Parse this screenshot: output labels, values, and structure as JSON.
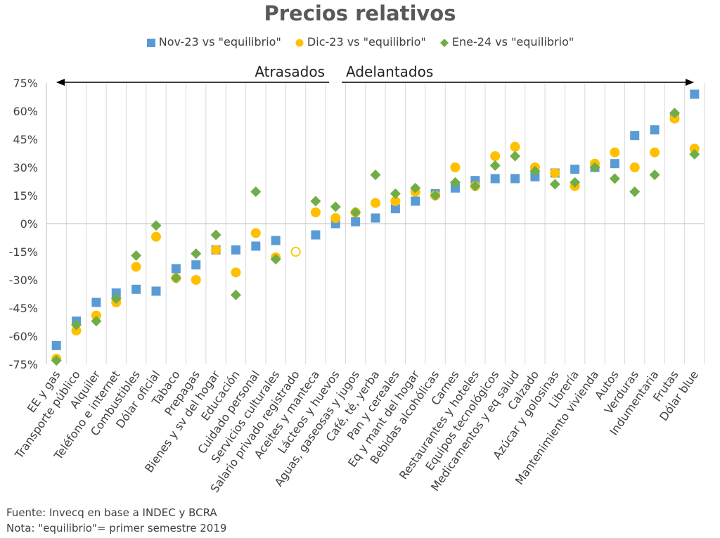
{
  "chart_data": {
    "type": "scatter",
    "title": "Precios relativos",
    "categories": [
      "EE y gas",
      "Transporte público",
      "Alquiler",
      "Teléfono e internet",
      "Combustibles",
      "Dólar oficial",
      "Tabaco",
      "Prepagas",
      "Bienes y sv del hogar",
      "Educación",
      "Cuidado personal",
      "Servicios culturales",
      "Salario privado registrado",
      "Aceites y manteca",
      "Lácteos y huevos",
      "Aguas, gaseosas y jugos",
      "Café, té, yerba",
      "Pan y cereales",
      "Eq y mant del hogar",
      "Bebidas alcohólicas",
      "Carnes",
      "Restaurantes y hoteles",
      "Equipos tecnológicos",
      "Medicamentos y eq salud",
      "Calzado",
      "Azúcar y golosinas",
      "Librería",
      "Mantenimiento vivienda",
      "Autos",
      "Verduras",
      "Indumentaria",
      "Frutas",
      "Dólar blue"
    ],
    "series": [
      {
        "name": "Nov-23 vs \"equilibrio\"",
        "marker": "square",
        "color": "#5b9bd5",
        "values": [
          -65,
          -52,
          -42,
          -37,
          -35,
          -36,
          -24,
          -22,
          -14,
          -14,
          -12,
          -9,
          null,
          -6,
          0,
          1,
          3,
          8,
          12,
          16,
          19,
          23,
          24,
          24,
          25,
          27,
          29,
          30,
          32,
          47,
          50,
          57,
          69
        ]
      },
      {
        "name": "Dic-23 vs \"equilibrio\"",
        "marker": "circle",
        "color": "#ffc000",
        "values": [
          -72,
          -57,
          -49,
          -42,
          -23,
          -7,
          -29,
          -30,
          -14,
          -26,
          -5,
          -18,
          -15,
          6,
          3,
          6,
          11,
          12,
          17,
          15,
          30,
          20,
          36,
          41,
          30,
          27,
          20,
          32,
          38,
          30,
          38,
          56,
          40
        ]
      },
      {
        "name": "Ene-24 vs \"equilibrio\"",
        "marker": "diamond",
        "color": "#70ad47",
        "values": [
          -73,
          -54,
          -52,
          -40,
          -17,
          -1,
          -29,
          -16,
          -6,
          -38,
          17,
          -19,
          null,
          12,
          9,
          6,
          26,
          16,
          19,
          15,
          22,
          20,
          31,
          36,
          28,
          21,
          22,
          30,
          24,
          17,
          26,
          59,
          37
        ]
      }
    ],
    "special_points": [
      {
        "category": "Salario privado registrado",
        "value": -15,
        "marker": "hollow-circle",
        "color": "#ffc000"
      }
    ],
    "ylim": [
      -75,
      75
    ],
    "yticks": [
      75,
      60,
      45,
      30,
      15,
      0,
      -15,
      -30,
      -45,
      -60,
      -75
    ],
    "ytick_labels": [
      "75%",
      "60%",
      "45%",
      "30%",
      "15%",
      "0%",
      "-15%",
      "-30%",
      "-45%",
      "-60%",
      "-75%"
    ],
    "xlabel": "",
    "ylabel": "",
    "grid": "vertical",
    "legend_position": "top",
    "annotations": {
      "left": "Atrasados",
      "right": "Adelantados"
    }
  },
  "legend": [
    {
      "label": "Nov-23 vs \"equilibrio\"",
      "marker": "square",
      "color": "#5b9bd5"
    },
    {
      "label": "Dic-23 vs \"equilibrio\"",
      "marker": "circle",
      "color": "#ffc000"
    },
    {
      "label": "Ene-24 vs \"equilibrio\"",
      "marker": "diamond",
      "color": "#70ad47"
    }
  ],
  "notes": {
    "source": "Fuente: Invecq en base a INDEC y BCRA",
    "note": "Nota: \"equilibrio\"= primer semestre 2019"
  }
}
